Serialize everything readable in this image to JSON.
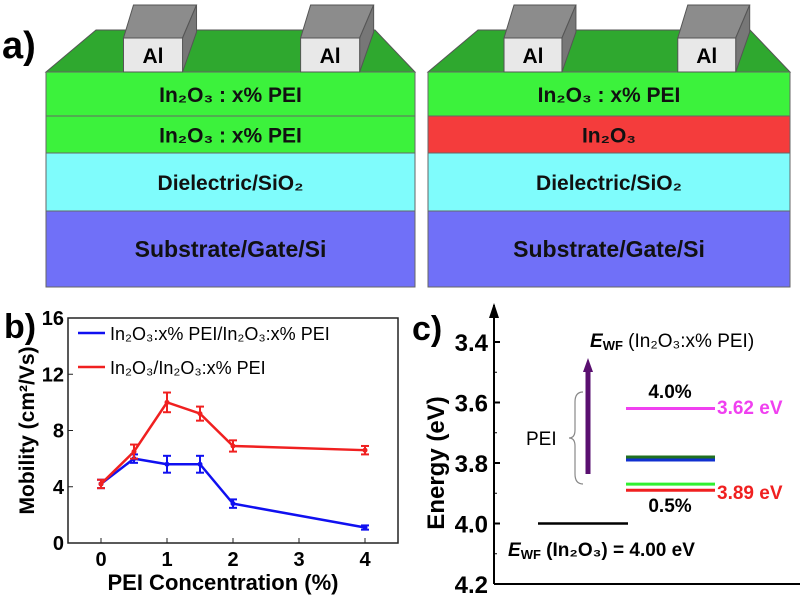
{
  "panel_a": {
    "label": "a)",
    "devices": [
      {
        "electrode_label": "Al",
        "layers": [
          {
            "label": "In₂O₃ : x% PEI",
            "color": "#3cf23c"
          },
          {
            "label": "In₂O₃ : x% PEI",
            "color": "#3cf23c"
          },
          {
            "label": "Dielectric/SiO₂",
            "color": "#7ffcfc"
          },
          {
            "label": "Substrate/Gate/Si",
            "color": "#7070f8"
          }
        ],
        "top_color": "#2fa82f"
      },
      {
        "electrode_label": "Al",
        "layers": [
          {
            "label": "In₂O₃ : x% PEI",
            "color": "#3cf23c"
          },
          {
            "label": "In₂O₃",
            "color": "#f43c3c"
          },
          {
            "label": "Dielectric/SiO₂",
            "color": "#7ffcfc"
          },
          {
            "label": "Substrate/Gate/Si",
            "color": "#7070f8"
          }
        ],
        "top_color": "#2fa82f"
      }
    ]
  },
  "chart_data": [
    {
      "panel_label": "b)",
      "type": "line",
      "xlabel": "PEI Concentration (%)",
      "ylabel": "Mobility (cm²/Vs)",
      "xlim": [
        -0.5,
        4.5
      ],
      "ylim": [
        0,
        16
      ],
      "xticks": [
        0,
        1,
        2,
        3,
        4
      ],
      "yticks": [
        0,
        4,
        8,
        12,
        16
      ],
      "grid": false,
      "legend_placement": "top",
      "x": [
        0,
        0.5,
        1,
        1.5,
        2,
        4
      ],
      "series": [
        {
          "name": "In₂O₃:x% PEI/In₂O₃:x% PEI",
          "color": "#1010f0",
          "values": [
            4.2,
            6.0,
            5.6,
            5.6,
            2.8,
            1.1
          ],
          "errors": [
            0.3,
            0.3,
            0.6,
            0.6,
            0.3,
            0.15
          ]
        },
        {
          "name": "In₂O₃/In₂O₃:x% PEI",
          "color": "#f02020",
          "values": [
            4.2,
            6.5,
            10.0,
            9.2,
            6.9,
            6.6
          ],
          "errors": [
            0.3,
            0.5,
            0.7,
            0.5,
            0.4,
            0.3
          ]
        }
      ]
    },
    {
      "panel_label": "c)",
      "type": "energy-level",
      "ylabel": "Energy (eV)",
      "ylim": [
        4.2,
        3.4
      ],
      "yticks": [
        "3.4",
        "3.6",
        "3.8",
        "4.0",
        "4.2"
      ],
      "reference": {
        "value": 4.0,
        "color": "#000000",
        "label_prefix": "E",
        "label_sub": "WF",
        "label_rest": " (In₂O₃) = 4.00 eV"
      },
      "title": {
        "prefix": "E",
        "sub": "WF",
        "rest": " (In₂O₃:x% PEI)"
      },
      "levels": [
        {
          "value": 3.62,
          "color": "#f040f0"
        },
        {
          "value": 3.78,
          "color": "#207020"
        },
        {
          "value": 3.79,
          "color": "#1030d0"
        },
        {
          "value": 3.87,
          "color": "#30f030"
        },
        {
          "value": 3.89,
          "color": "#f02020"
        }
      ],
      "annotations": {
        "top_pct": "4.0%",
        "bottom_pct": "0.5%",
        "top_value": "3.62 eV",
        "top_value_color": "#f040f0",
        "bottom_value": "3.89 eV",
        "bottom_value_color": "#f02020",
        "arrow_label": "PEI",
        "arrow_color": "#5a1070"
      }
    }
  ]
}
